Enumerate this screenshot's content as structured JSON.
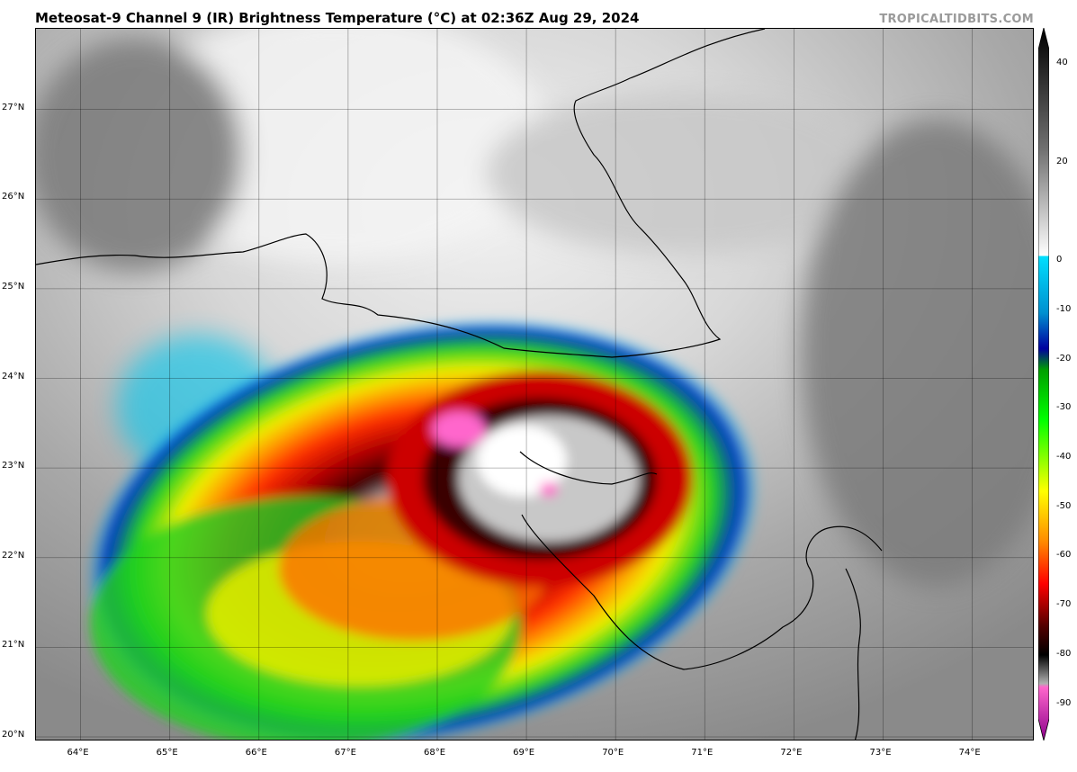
{
  "header": {
    "title": "Meteosat-9 Channel 9 (IR) Brightness Temperature (°C) at 02:36Z Aug 29, 2024",
    "credit": "TROPICALTIDBITS.COM"
  },
  "map": {
    "lon_range": [
      63.5,
      74.7
    ],
    "lat_range": [
      19.95,
      27.9
    ],
    "lon_ticks": [
      "64°E",
      "65°E",
      "66°E",
      "67°E",
      "68°E",
      "69°E",
      "70°E",
      "71°E",
      "72°E",
      "73°E",
      "74°E"
    ],
    "lat_ticks": [
      "20°N",
      "21°N",
      "22°N",
      "23°N",
      "24°N",
      "25°N",
      "26°N",
      "27°N"
    ],
    "grid": true
  },
  "colorbar": {
    "range": [
      -93,
      43
    ],
    "ticks": [
      "40",
      "20",
      "0",
      "-10",
      "-20",
      "-30",
      "-40",
      "-50",
      "-60",
      "-70",
      "-80",
      "-90"
    ],
    "tick_values": [
      40,
      20,
      0,
      -10,
      -20,
      -30,
      -40,
      -50,
      -60,
      -70,
      -80,
      -90
    ],
    "colors": {
      "warm": "#000000",
      "neutral": "#ffffff",
      "cyan": "#00e0ff",
      "blue": "#0000a0",
      "green": "#00d000",
      "yellow": "#ffff00",
      "orange": "#ff8c00",
      "red": "#d00000",
      "darkred": "#500000",
      "magenta": "#ff66cc",
      "purple": "#8b008b"
    }
  }
}
